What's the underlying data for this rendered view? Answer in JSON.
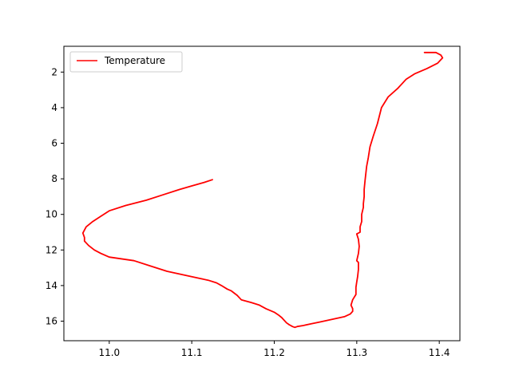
{
  "chart_data": {
    "type": "line",
    "title": "",
    "xlabel": "",
    "ylabel": "",
    "xlim": [
      10.945,
      11.425
    ],
    "ylim": [
      17.1,
      0.55
    ],
    "y_inverted": true,
    "xticks": [
      11.0,
      11.1,
      11.2,
      11.3,
      11.4
    ],
    "xtick_labels": [
      "11.0",
      "11.1",
      "11.2",
      "11.3",
      "11.4"
    ],
    "yticks": [
      2,
      4,
      6,
      8,
      10,
      12,
      14,
      16
    ],
    "ytick_labels": [
      "2",
      "4",
      "6",
      "8",
      "10",
      "12",
      "14",
      "16"
    ],
    "grid": false,
    "legend_position": "upper-left",
    "series": [
      {
        "name": "Temperature",
        "color": "#ff0000",
        "x": [
          11.382,
          11.396,
          11.402,
          11.404,
          11.398,
          11.385,
          11.37,
          11.36,
          11.35,
          11.338,
          11.33,
          11.325,
          11.32,
          11.316,
          11.314,
          11.312,
          11.311,
          11.31,
          11.309,
          11.309,
          11.308,
          11.308,
          11.306,
          11.306,
          11.304,
          11.304,
          11.3,
          11.302,
          11.303,
          11.302,
          11.3,
          11.302,
          11.302,
          11.301,
          11.3,
          11.299,
          11.299,
          11.295,
          11.293,
          11.295,
          11.295,
          11.292,
          11.285,
          11.27,
          11.255,
          11.245,
          11.235,
          11.228,
          11.225,
          11.222,
          11.22,
          11.218,
          11.215,
          11.212,
          11.209,
          11.205,
          11.2,
          11.19,
          11.182,
          11.172,
          11.16,
          11.155,
          11.148,
          11.143,
          11.136,
          11.13,
          11.12,
          11.11,
          11.09,
          11.07,
          11.05,
          11.03,
          11.0,
          10.99,
          10.982,
          10.975,
          10.97,
          10.97,
          10.968,
          10.972,
          10.98,
          10.99,
          11.0,
          11.02,
          11.045,
          11.065,
          11.085,
          11.1,
          11.115,
          11.125
        ],
        "y": [
          0.9,
          0.9,
          1.05,
          1.2,
          1.5,
          1.8,
          2.1,
          2.4,
          2.9,
          3.4,
          4.0,
          4.9,
          5.6,
          6.2,
          6.8,
          7.3,
          7.7,
          8.1,
          8.6,
          9.0,
          9.4,
          9.6,
          10.0,
          10.4,
          10.7,
          11.0,
          11.1,
          11.4,
          11.8,
          12.2,
          12.6,
          12.7,
          13.1,
          13.5,
          13.8,
          14.1,
          14.5,
          14.8,
          15.1,
          15.3,
          15.45,
          15.6,
          15.75,
          15.9,
          16.05,
          16.15,
          16.25,
          16.3,
          16.35,
          16.3,
          16.25,
          16.2,
          16.1,
          15.95,
          15.8,
          15.65,
          15.5,
          15.3,
          15.1,
          14.95,
          14.8,
          14.55,
          14.3,
          14.2,
          14.0,
          13.85,
          13.7,
          13.6,
          13.4,
          13.2,
          12.9,
          12.6,
          12.4,
          12.2,
          12.0,
          11.75,
          11.5,
          11.3,
          11.05,
          10.7,
          10.4,
          10.1,
          9.8,
          9.5,
          9.2,
          8.9,
          8.6,
          8.4,
          8.2,
          8.05
        ]
      }
    ]
  }
}
